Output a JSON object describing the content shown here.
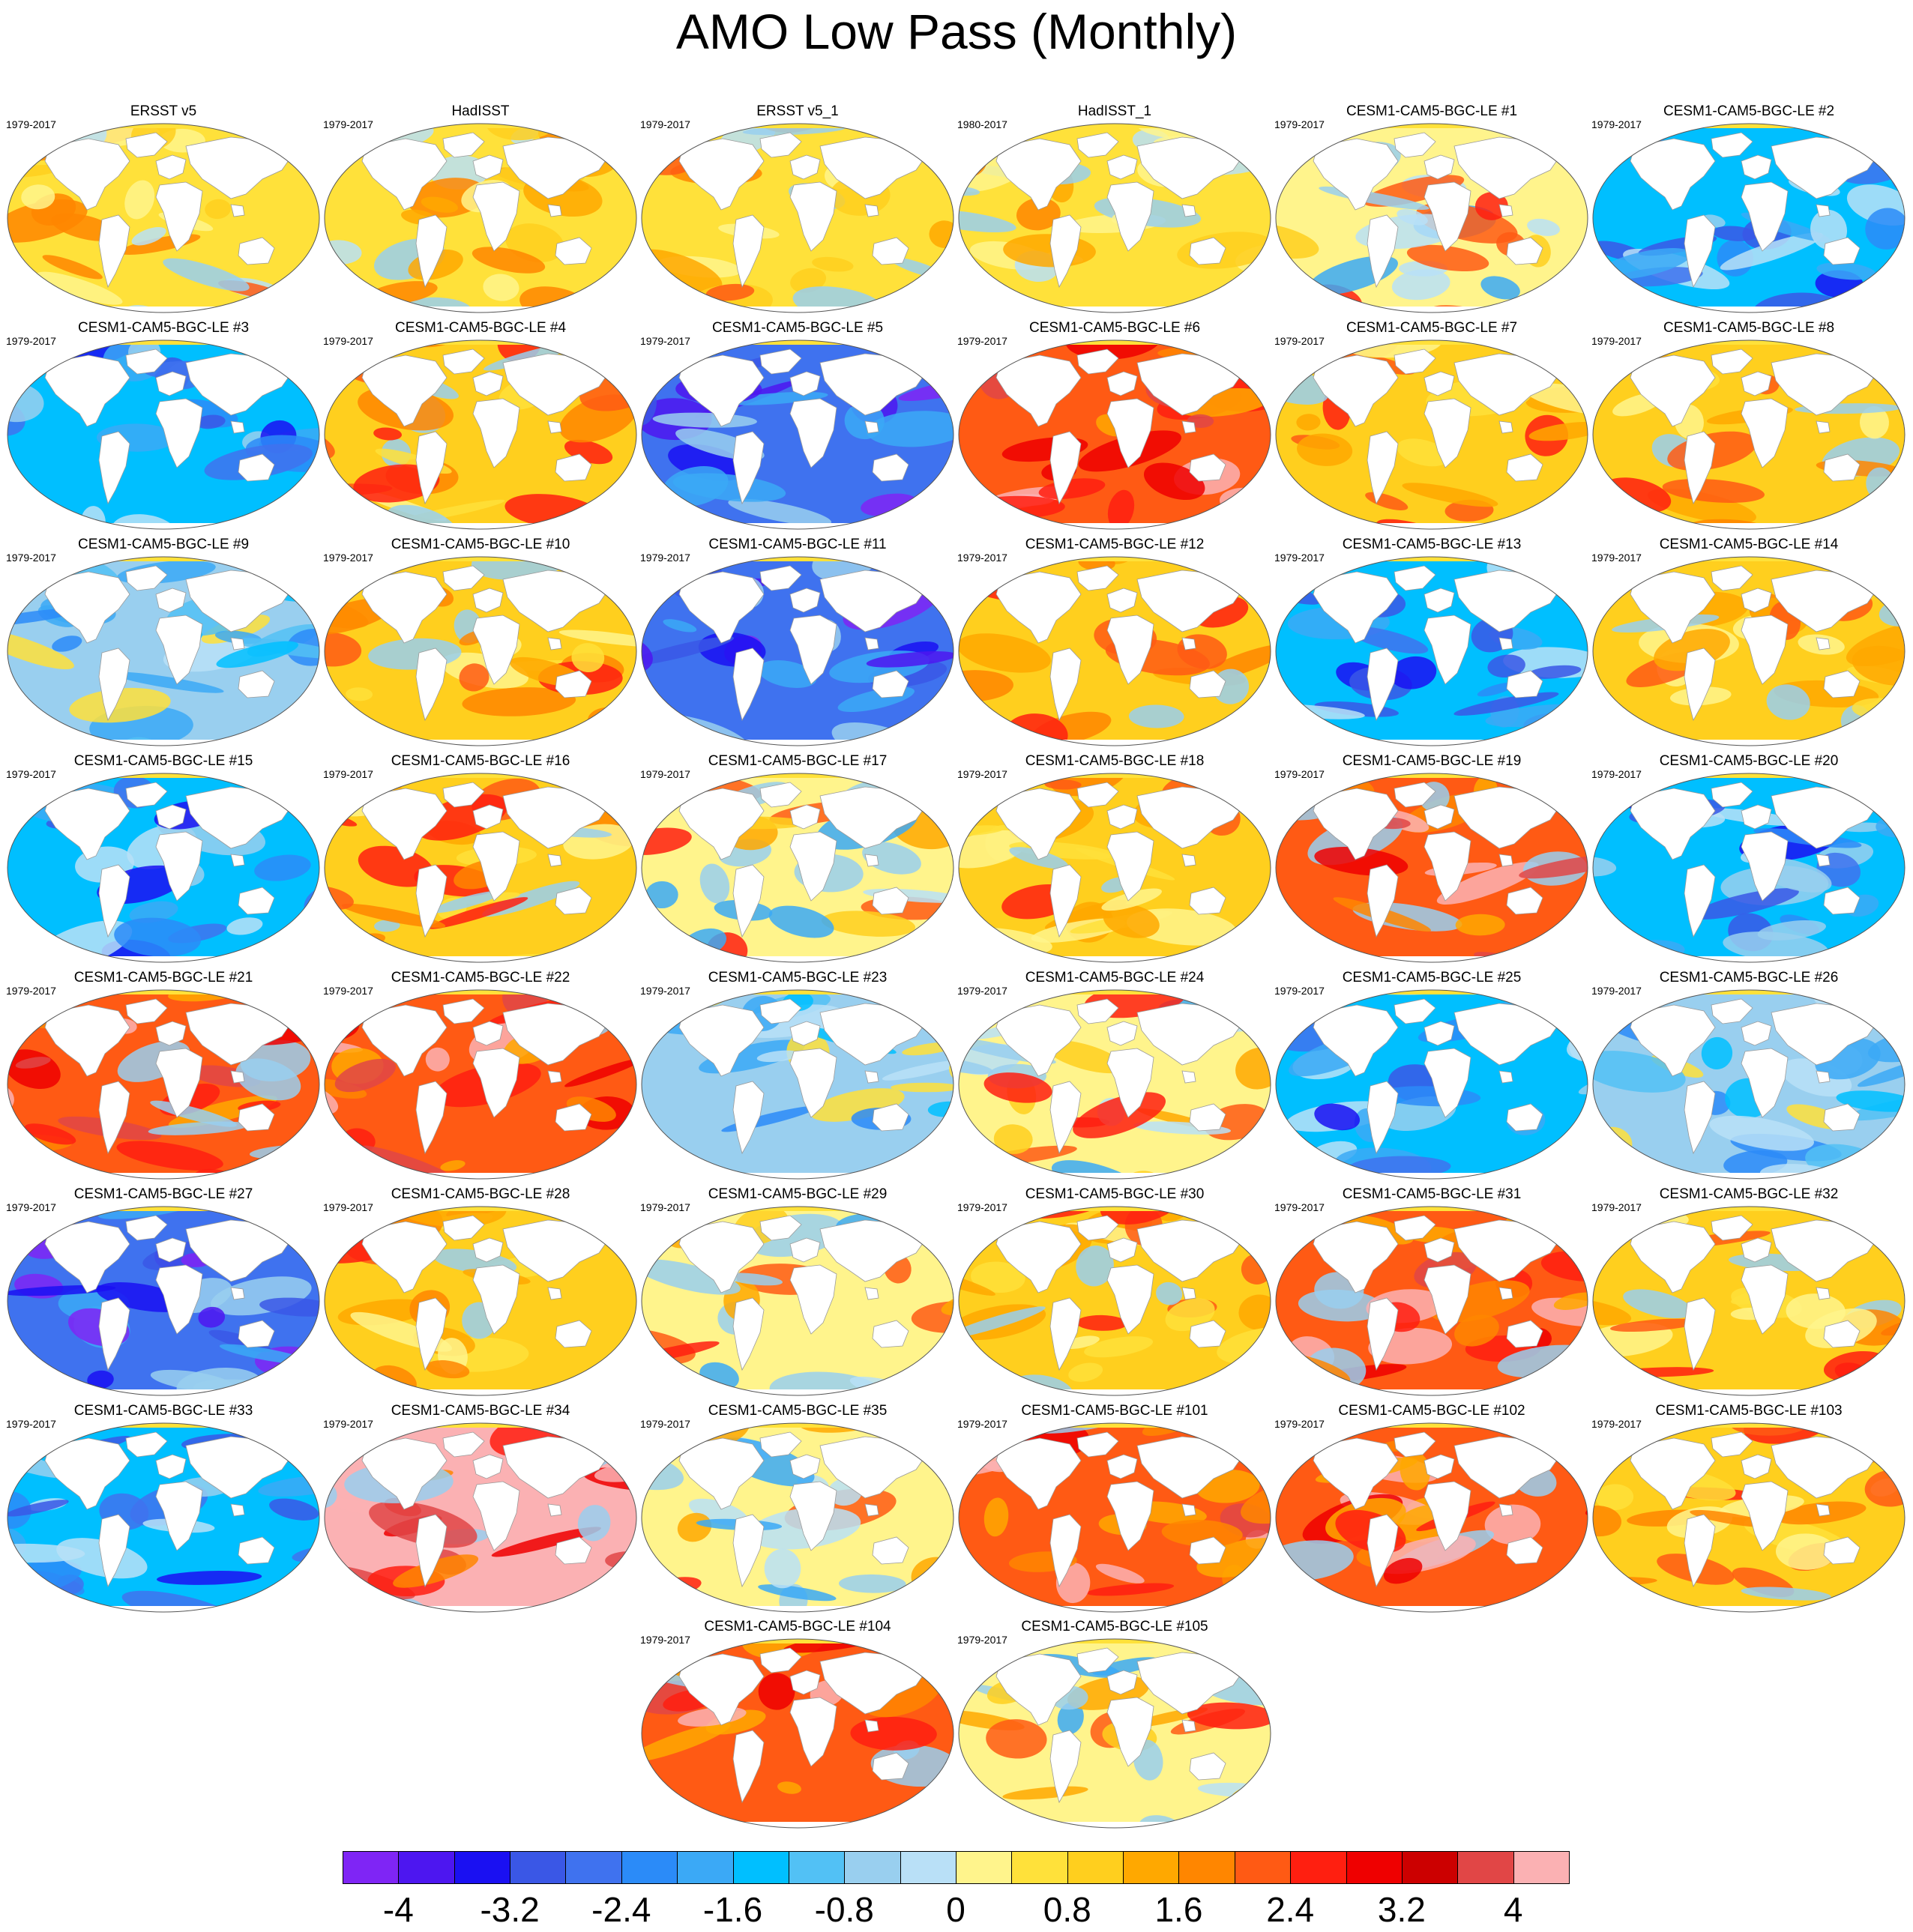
{
  "title": "AMO Low Pass (Monthly)",
  "panels": [
    {
      "label": "ERSST v5",
      "years": "1979-2017",
      "pattern": "obs"
    },
    {
      "label": "HadISST",
      "years": "1979-2017",
      "pattern": "obs2"
    },
    {
      "label": "ERSST v5_1",
      "years": "1979-2017",
      "pattern": "obs"
    },
    {
      "label": "HadISST_1",
      "years": "1980-2017",
      "pattern": "obs2"
    },
    {
      "label": "CESM1-CAM5-BGC-LE #1",
      "years": "1979-2017",
      "pattern": "mixed"
    },
    {
      "label": "CESM1-CAM5-BGC-LE #2",
      "years": "1979-2017",
      "pattern": "cold"
    },
    {
      "label": "CESM1-CAM5-BGC-LE #3",
      "years": "1979-2017",
      "pattern": "cold"
    },
    {
      "label": "CESM1-CAM5-BGC-LE #4",
      "years": "1979-2017",
      "pattern": "warm"
    },
    {
      "label": "CESM1-CAM5-BGC-LE #5",
      "years": "1979-2017",
      "pattern": "vcold"
    },
    {
      "label": "CESM1-CAM5-BGC-LE #6",
      "years": "1979-2017",
      "pattern": "vwarm"
    },
    {
      "label": "CESM1-CAM5-BGC-LE #7",
      "years": "1979-2017",
      "pattern": "warm"
    },
    {
      "label": "CESM1-CAM5-BGC-LE #8",
      "years": "1979-2017",
      "pattern": "warm"
    },
    {
      "label": "CESM1-CAM5-BGC-LE #9",
      "years": "1979-2017",
      "pattern": "cool"
    },
    {
      "label": "CESM1-CAM5-BGC-LE #10",
      "years": "1979-2017",
      "pattern": "warm"
    },
    {
      "label": "CESM1-CAM5-BGC-LE #11",
      "years": "1979-2017",
      "pattern": "vcold"
    },
    {
      "label": "CESM1-CAM5-BGC-LE #12",
      "years": "1979-2017",
      "pattern": "warm"
    },
    {
      "label": "CESM1-CAM5-BGC-LE #13",
      "years": "1979-2017",
      "pattern": "cold"
    },
    {
      "label": "CESM1-CAM5-BGC-LE #14",
      "years": "1979-2017",
      "pattern": "warm"
    },
    {
      "label": "CESM1-CAM5-BGC-LE #15",
      "years": "1979-2017",
      "pattern": "cold"
    },
    {
      "label": "CESM1-CAM5-BGC-LE #16",
      "years": "1979-2017",
      "pattern": "warm"
    },
    {
      "label": "CESM1-CAM5-BGC-LE #17",
      "years": "1979-2017",
      "pattern": "mixed"
    },
    {
      "label": "CESM1-CAM5-BGC-LE #18",
      "years": "1979-2017",
      "pattern": "warm"
    },
    {
      "label": "CESM1-CAM5-BGC-LE #19",
      "years": "1979-2017",
      "pattern": "vwarm"
    },
    {
      "label": "CESM1-CAM5-BGC-LE #20",
      "years": "1979-2017",
      "pattern": "cold"
    },
    {
      "label": "CESM1-CAM5-BGC-LE #21",
      "years": "1979-2017",
      "pattern": "vwarm"
    },
    {
      "label": "CESM1-CAM5-BGC-LE #22",
      "years": "1979-2017",
      "pattern": "vwarm"
    },
    {
      "label": "CESM1-CAM5-BGC-LE #23",
      "years": "1979-2017",
      "pattern": "cool"
    },
    {
      "label": "CESM1-CAM5-BGC-LE #24",
      "years": "1979-2017",
      "pattern": "mixed"
    },
    {
      "label": "CESM1-CAM5-BGC-LE #25",
      "years": "1979-2017",
      "pattern": "cold"
    },
    {
      "label": "CESM1-CAM5-BGC-LE #26",
      "years": "1979-2017",
      "pattern": "cool"
    },
    {
      "label": "CESM1-CAM5-BGC-LE #27",
      "years": "1979-2017",
      "pattern": "vcold"
    },
    {
      "label": "CESM1-CAM5-BGC-LE #28",
      "years": "1979-2017",
      "pattern": "warm"
    },
    {
      "label": "CESM1-CAM5-BGC-LE #29",
      "years": "1979-2017",
      "pattern": "mixed"
    },
    {
      "label": "CESM1-CAM5-BGC-LE #30",
      "years": "1979-2017",
      "pattern": "warm"
    },
    {
      "label": "CESM1-CAM5-BGC-LE #31",
      "years": "1979-2017",
      "pattern": "vwarm"
    },
    {
      "label": "CESM1-CAM5-BGC-LE #32",
      "years": "1979-2017",
      "pattern": "warm"
    },
    {
      "label": "CESM1-CAM5-BGC-LE #33",
      "years": "1979-2017",
      "pattern": "cold"
    },
    {
      "label": "CESM1-CAM5-BGC-LE #34",
      "years": "1979-2017",
      "pattern": "hot"
    },
    {
      "label": "CESM1-CAM5-BGC-LE #35",
      "years": "1979-2017",
      "pattern": "mixed"
    },
    {
      "label": "CESM1-CAM5-BGC-LE #101",
      "years": "1979-2017",
      "pattern": "vwarm"
    },
    {
      "label": "CESM1-CAM5-BGC-LE #102",
      "years": "1979-2017",
      "pattern": "vwarm"
    },
    {
      "label": "CESM1-CAM5-BGC-LE #103",
      "years": "1979-2017",
      "pattern": "warm"
    },
    {
      "label": "CESM1-CAM5-BGC-LE #104",
      "years": "1979-2017",
      "pattern": "vwarm"
    },
    {
      "label": "CESM1-CAM5-BGC-LE #105",
      "years": "1979-2017",
      "pattern": "mixed"
    }
  ],
  "colorbar": {
    "colors": [
      "#7f25f5",
      "#4d16f0",
      "#1a10f2",
      "#3a57e6",
      "#3f72ef",
      "#2b8bf8",
      "#3ba9f6",
      "#00bfff",
      "#52c1f5",
      "#99cfef",
      "#b9e0f7",
      "#fff48c",
      "#ffe13a",
      "#ffcf1e",
      "#ffa800",
      "#ff8600",
      "#ff5a14",
      "#ff1f10",
      "#ef0000",
      "#cc0000",
      "#e14646",
      "#fbb1b3"
    ],
    "labels": [
      "-4",
      "-3.2",
      "-2.4",
      "-1.6",
      "-0.8",
      "0",
      "0.8",
      "1.6",
      "2.4",
      "3.2",
      "4"
    ]
  }
}
